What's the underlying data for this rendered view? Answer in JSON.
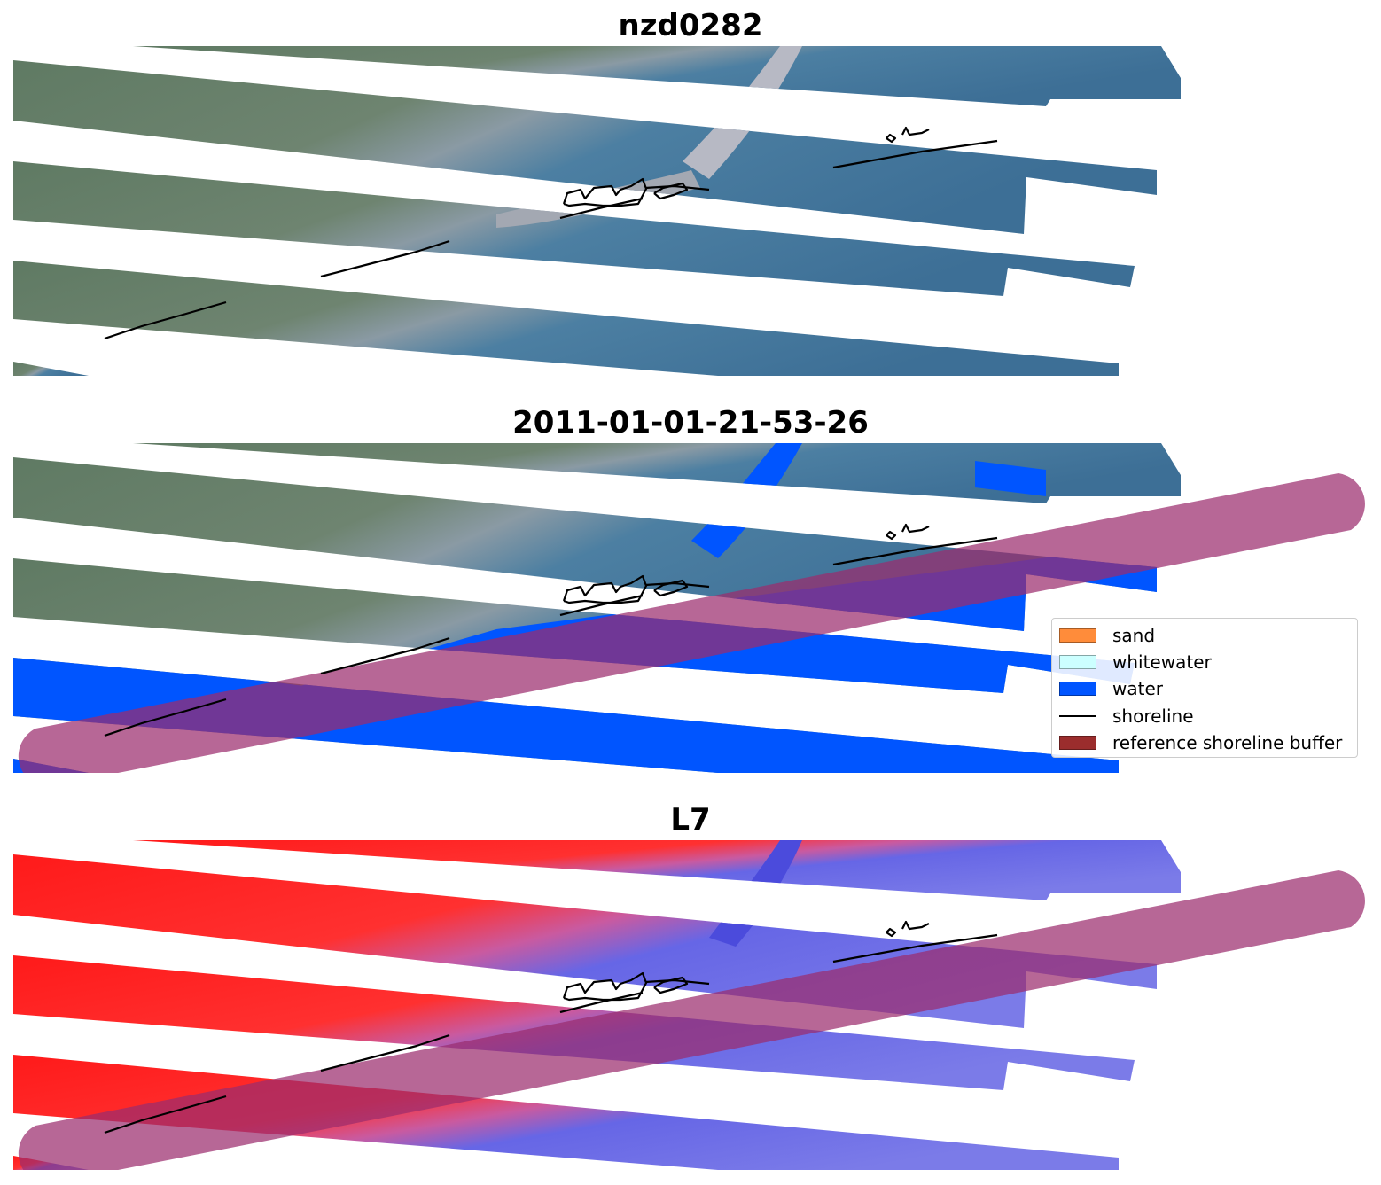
{
  "panels": [
    {
      "title": "nzd0282",
      "view": "rgb"
    },
    {
      "title": "2011-01-01-21-53-26",
      "view": "classified"
    },
    {
      "title": "L7",
      "view": "mndwi"
    }
  ],
  "legend": [
    {
      "label": "sand",
      "color": "#ff8c3a",
      "kind": "patch"
    },
    {
      "label": "whitewater",
      "color": "#ccffff",
      "kind": "patch"
    },
    {
      "label": "water",
      "color": "#0055ff",
      "kind": "patch"
    },
    {
      "label": "shoreline",
      "color": "#000000",
      "kind": "line"
    },
    {
      "label": "reference shoreline buffer",
      "color": "#9b2d2d",
      "kind": "patch"
    }
  ],
  "colors": {
    "land": "#5f7a63",
    "sea": "#3d6f96",
    "water_class": "#0055ff",
    "buffer_overlay": "#9b2d6e",
    "index_high": "#ff1a1a",
    "index_low": "#3b3bdd",
    "shoreline": "#000000"
  }
}
